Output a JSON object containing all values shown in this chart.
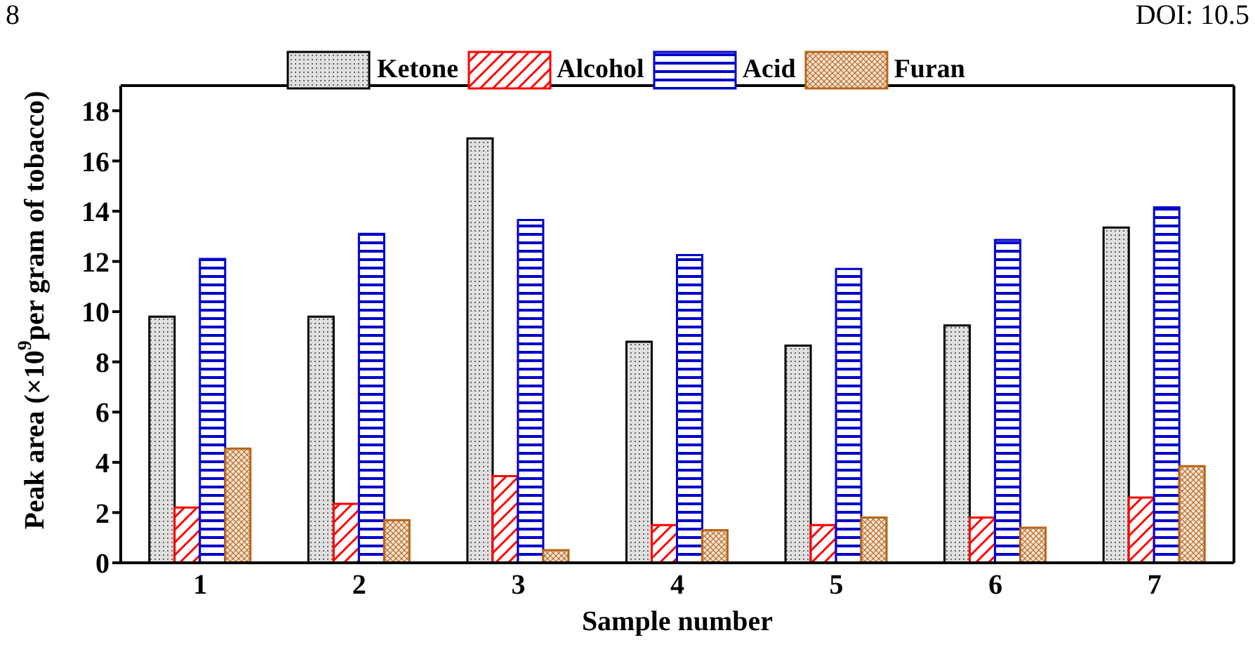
{
  "chart_data": {
    "type": "bar",
    "xlabel": "Sample number",
    "ylabel": "Peak area (×10$^{9}$per gram of tobacco)",
    "annotations": [
      "8",
      "DOI: 10.5"
    ],
    "categories": [
      "1",
      "2",
      "3",
      "4",
      "5",
      "6",
      "7"
    ],
    "series": [
      {
        "name": "Ketone",
        "color": "#000000",
        "values": [
          9.8,
          9.8,
          16.9,
          8.8,
          8.65,
          9.45,
          13.35
        ]
      },
      {
        "name": "Alcohol",
        "color": "#ff0000",
        "values": [
          2.2,
          2.35,
          3.45,
          1.5,
          1.5,
          1.8,
          2.6
        ]
      },
      {
        "name": "Acid",
        "color": "#0000cc",
        "values": [
          12.1,
          13.1,
          13.65,
          12.25,
          11.7,
          12.85,
          14.15
        ]
      },
      {
        "name": "Furan",
        "color": "#b8651b",
        "values": [
          4.55,
          1.7,
          0.5,
          1.3,
          1.8,
          1.4,
          3.85
        ]
      }
    ],
    "ylim": [
      0,
      19
    ],
    "yticks": [
      0,
      2,
      4,
      6,
      8,
      10,
      12,
      14,
      16,
      18
    ],
    "grid": false,
    "legend": "top"
  }
}
